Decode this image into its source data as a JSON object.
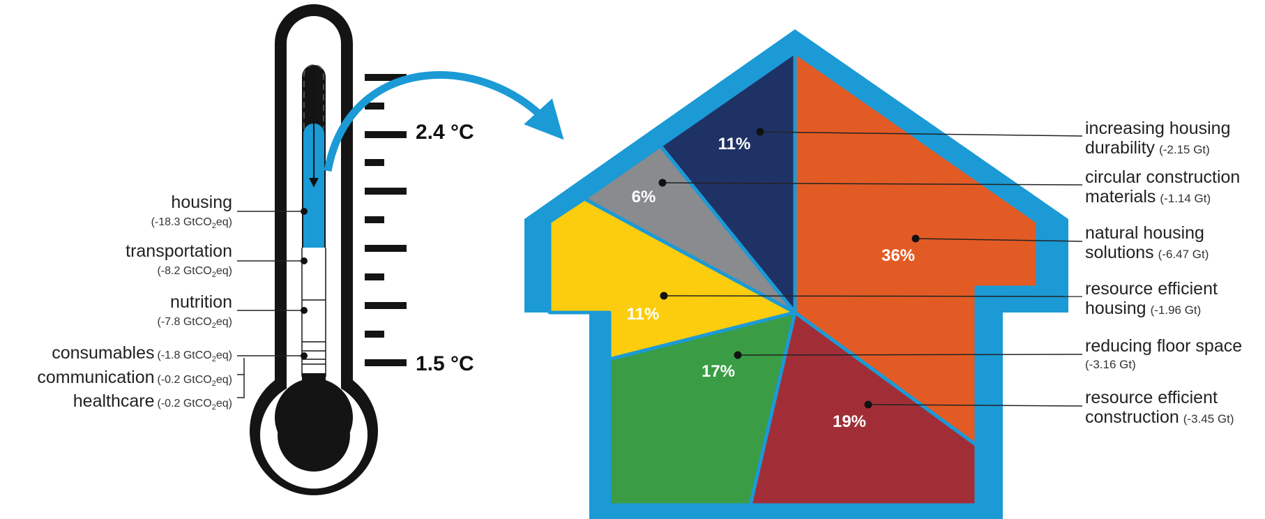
{
  "thermometer": {
    "temp_high": "2.4 °C",
    "temp_low": "1.5 °C",
    "fill_color": "#1b9ad6",
    "categories": [
      {
        "name": "housing",
        "value_prefix": "(-18.3 GtCO",
        "value_sub": "2",
        "value_suffix": "eq)"
      },
      {
        "name": "transportation",
        "value_prefix": "(-8.2 GtCO",
        "value_sub": "2",
        "value_suffix": "eq)"
      },
      {
        "name": "nutrition",
        "value_prefix": "(-7.8 GtCO",
        "value_sub": "2",
        "value_suffix": "eq)"
      },
      {
        "name": "consumables",
        "value_prefix": "(-1.8 GtCO",
        "value_sub": "2",
        "value_suffix": "eq)"
      },
      {
        "name": "communication",
        "value_prefix": "(-0.2 GtCO",
        "value_sub": "2",
        "value_suffix": "eq)"
      },
      {
        "name": "healthcare",
        "value_prefix": "(-0.2 GtCO",
        "value_sub": "2",
        "value_suffix": "eq)"
      }
    ]
  },
  "house": {
    "border_color": "#1b9ad6",
    "segments": [
      {
        "percent": "11%",
        "label_line1": "increasing housing",
        "label_line2": "durability",
        "value": "(-2.15 Gt)",
        "color": "#1f3266"
      },
      {
        "percent": "6%",
        "label_line1": "circular construction",
        "label_line2": "materials",
        "value": "(-1.14 Gt)",
        "color": "#898b8e"
      },
      {
        "percent": "36%",
        "label_line1": "natural housing",
        "label_line2": "solutions",
        "value": "(-6.47 Gt)",
        "color": "#e35b24"
      },
      {
        "percent": "11%",
        "label_line1": "resource efficient",
        "label_line2": "housing",
        "value": "(-1.96 Gt)",
        "color": "#fbcd0e"
      },
      {
        "percent": "17%",
        "label_line1": "reducing floor space",
        "label_line2": "",
        "value": "(-3.16 Gt)",
        "color": "#3a9c45"
      },
      {
        "percent": "19%",
        "label_line1": "resource efficient",
        "label_line2": "construction",
        "value": "(-3.45 Gt)",
        "color": "#a12e37"
      }
    ]
  }
}
